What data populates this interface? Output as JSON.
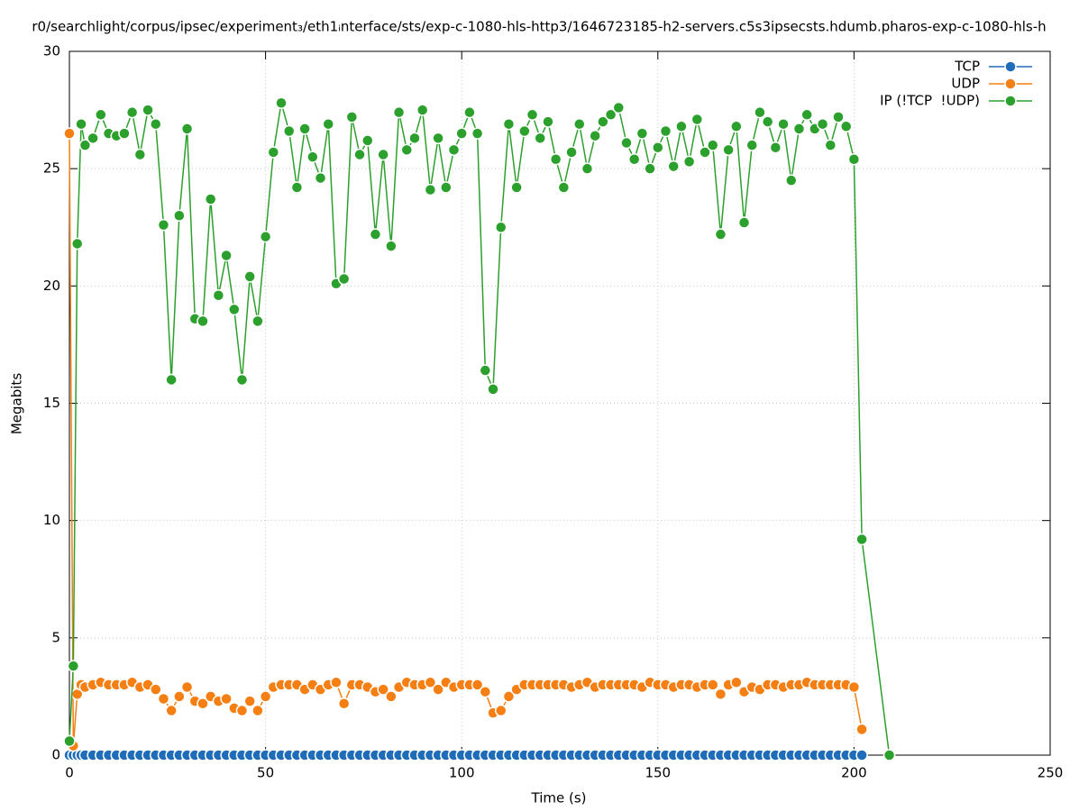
{
  "chart_data": {
    "type": "line",
    "title": "r0/searchlight/corpus/ipsec/experiment₃/eth1ᵢnterface/sts/exp-c-1080-hls-http3/1646723185-h2-servers.c5s3ipsecsts.hdumb.pharos-exp-c-1080-hls-h",
    "x_label": "Time (s)",
    "y_label": "Megabits",
    "xlim": [
      0,
      250
    ],
    "xticks": [
      0,
      50,
      100,
      150,
      200,
      250
    ],
    "ylim": [
      0,
      30
    ],
    "yticks": [
      0,
      5,
      10,
      15,
      20,
      25,
      30
    ],
    "grid": true,
    "legend": "top-right",
    "x": [
      0,
      1,
      2,
      3,
      4,
      6,
      8,
      10,
      12,
      14,
      16,
      18,
      20,
      22,
      24,
      26,
      28,
      30,
      32,
      34,
      36,
      38,
      40,
      42,
      44,
      46,
      48,
      50,
      52,
      54,
      56,
      58,
      60,
      62,
      64,
      66,
      68,
      70,
      72,
      74,
      76,
      78,
      80,
      82,
      84,
      86,
      88,
      90,
      92,
      94,
      96,
      98,
      100,
      102,
      104,
      106,
      108,
      110,
      112,
      114,
      116,
      118,
      120,
      122,
      124,
      126,
      128,
      130,
      132,
      134,
      136,
      138,
      140,
      142,
      144,
      146,
      148,
      150,
      152,
      154,
      156,
      158,
      160,
      162,
      164,
      166,
      168,
      170,
      172,
      174,
      176,
      178,
      180,
      182,
      184,
      186,
      188,
      190,
      192,
      194,
      196,
      198,
      200,
      202,
      209
    ],
    "series": [
      {
        "name": "TCP",
        "color": "#1f6db8",
        "values": [
          0,
          0,
          0,
          0,
          0,
          0,
          0,
          0,
          0,
          0,
          0,
          0,
          0,
          0,
          0,
          0,
          0,
          0,
          0,
          0,
          0,
          0,
          0,
          0,
          0,
          0,
          0,
          0,
          0,
          0,
          0,
          0,
          0,
          0,
          0,
          0,
          0,
          0,
          0,
          0,
          0,
          0,
          0,
          0,
          0,
          0,
          0,
          0,
          0,
          0,
          0,
          0,
          0,
          0,
          0,
          0,
          0,
          0,
          0,
          0,
          0,
          0,
          0,
          0,
          0,
          0,
          0,
          0,
          0,
          0,
          0,
          0,
          0,
          0,
          0,
          0,
          0,
          0,
          0,
          0,
          0,
          0,
          0,
          0,
          0,
          0,
          0,
          0,
          0,
          0,
          0,
          0,
          0,
          0,
          0,
          0,
          0,
          0,
          0,
          0,
          0,
          0,
          0,
          0,
          null
        ]
      },
      {
        "name": "UDP",
        "color": "#f57f12",
        "values": [
          26.5,
          0.4,
          2.6,
          3.0,
          2.9,
          3.0,
          3.1,
          3.0,
          3.0,
          3.0,
          3.1,
          2.9,
          3.0,
          2.8,
          2.4,
          1.9,
          2.5,
          2.9,
          2.3,
          2.2,
          2.5,
          2.3,
          2.4,
          2.0,
          1.9,
          2.3,
          1.9,
          2.5,
          2.9,
          3.0,
          3.0,
          3.0,
          2.8,
          3.0,
          2.8,
          3.0,
          3.1,
          2.2,
          3.0,
          3.0,
          2.9,
          2.7,
          2.8,
          2.5,
          2.9,
          3.1,
          3.0,
          3.0,
          3.1,
          2.8,
          3.1,
          2.9,
          3.0,
          3.0,
          3.0,
          2.7,
          1.8,
          1.9,
          2.5,
          2.8,
          3.0,
          3.0,
          3.0,
          3.0,
          3.0,
          3.0,
          2.9,
          3.0,
          3.1,
          2.9,
          3.0,
          3.0,
          3.0,
          3.0,
          3.0,
          2.9,
          3.1,
          3.0,
          3.0,
          2.9,
          3.0,
          3.0,
          2.9,
          3.0,
          3.0,
          2.6,
          3.0,
          3.1,
          2.7,
          2.9,
          2.8,
          3.0,
          3.0,
          2.9,
          3.0,
          3.0,
          3.1,
          3.0,
          3.0,
          3.0,
          3.0,
          3.0,
          2.9,
          1.1,
          null
        ]
      },
      {
        "name": "IP (!TCP  !UDP)",
        "color": "#2ca02c",
        "values": [
          0.6,
          3.8,
          21.8,
          26.9,
          26.0,
          26.3,
          27.3,
          26.5,
          26.4,
          26.5,
          27.4,
          25.6,
          27.5,
          26.9,
          22.6,
          16.0,
          23.0,
          26.7,
          18.6,
          18.5,
          23.7,
          19.6,
          21.3,
          19.0,
          16.0,
          20.4,
          18.5,
          22.1,
          25.7,
          27.8,
          26.6,
          24.2,
          26.7,
          25.5,
          24.6,
          26.9,
          20.1,
          20.3,
          27.2,
          25.6,
          26.2,
          22.2,
          25.6,
          21.7,
          27.4,
          25.8,
          26.3,
          27.5,
          24.1,
          26.3,
          24.2,
          25.8,
          26.5,
          27.4,
          26.5,
          16.4,
          15.6,
          22.5,
          26.9,
          24.2,
          26.6,
          27.3,
          26.3,
          27.0,
          25.4,
          24.2,
          25.7,
          26.9,
          25.0,
          26.4,
          27.0,
          27.3,
          27.6,
          26.1,
          25.4,
          26.5,
          25.0,
          25.9,
          26.6,
          25.1,
          26.8,
          25.3,
          27.1,
          25.7,
          26.0,
          22.2,
          25.8,
          26.8,
          22.7,
          26.0,
          27.4,
          27.0,
          25.9,
          26.9,
          24.5,
          26.7,
          27.3,
          26.7,
          26.9,
          26.0,
          27.2,
          26.8,
          25.4,
          9.2,
          0
        ]
      }
    ]
  }
}
